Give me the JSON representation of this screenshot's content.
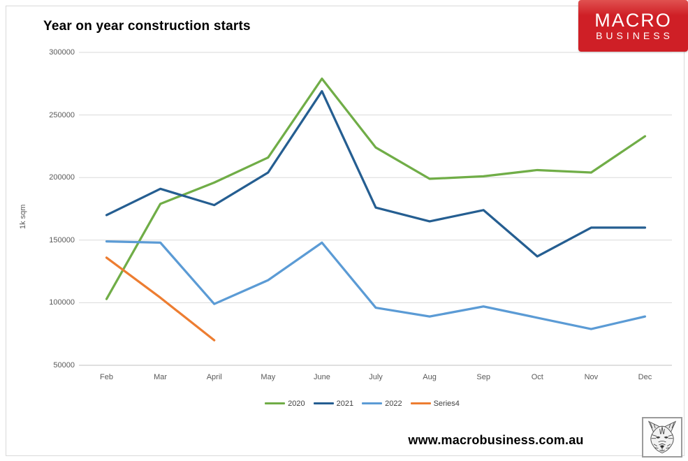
{
  "header": {
    "title": "Year on year construction starts"
  },
  "logo": {
    "line1": "MACRO",
    "line2": "BUSINESS",
    "bg_color": "#cf1f26",
    "bg_color_top": "#e05150",
    "text_color": "#ffffff"
  },
  "footer": {
    "website": "www.macrobusiness.com.au",
    "wolf_icon": "wolf-sketch-logo"
  },
  "chart_data": {
    "type": "line",
    "title": "Year on year construction starts",
    "ylabel": "1k sqm",
    "xlabel": "",
    "categories": [
      "Feb",
      "Mar",
      "April",
      "May",
      "June",
      "July",
      "Aug",
      "Sep",
      "Oct",
      "Nov",
      "Dec"
    ],
    "series": [
      {
        "name": "2020",
        "color": "#70AD47",
        "values": [
          103000,
          179000,
          196000,
          216000,
          279000,
          224000,
          199000,
          201000,
          206000,
          204000,
          233000
        ]
      },
      {
        "name": "2021",
        "color": "#255E91",
        "values": [
          170000,
          191000,
          178000,
          204000,
          269000,
          176000,
          165000,
          174000,
          137000,
          160000,
          160000
        ]
      },
      {
        "name": "2022",
        "color": "#5B9BD5",
        "values": [
          149000,
          148000,
          99000,
          118000,
          148000,
          96000,
          89000,
          97000,
          88000,
          79000,
          89000
        ]
      },
      {
        "name": "Series4",
        "color": "#ED7D31",
        "values": [
          136000,
          104000,
          70000
        ]
      }
    ],
    "ylim": [
      50000,
      300000
    ],
    "yticks": [
      300000,
      250000,
      200000,
      150000,
      100000,
      50000
    ],
    "grid": true,
    "gridline_color": "#d9d9d9",
    "axis_line_color": "#bfbfbf",
    "legend_position": "bottom"
  }
}
